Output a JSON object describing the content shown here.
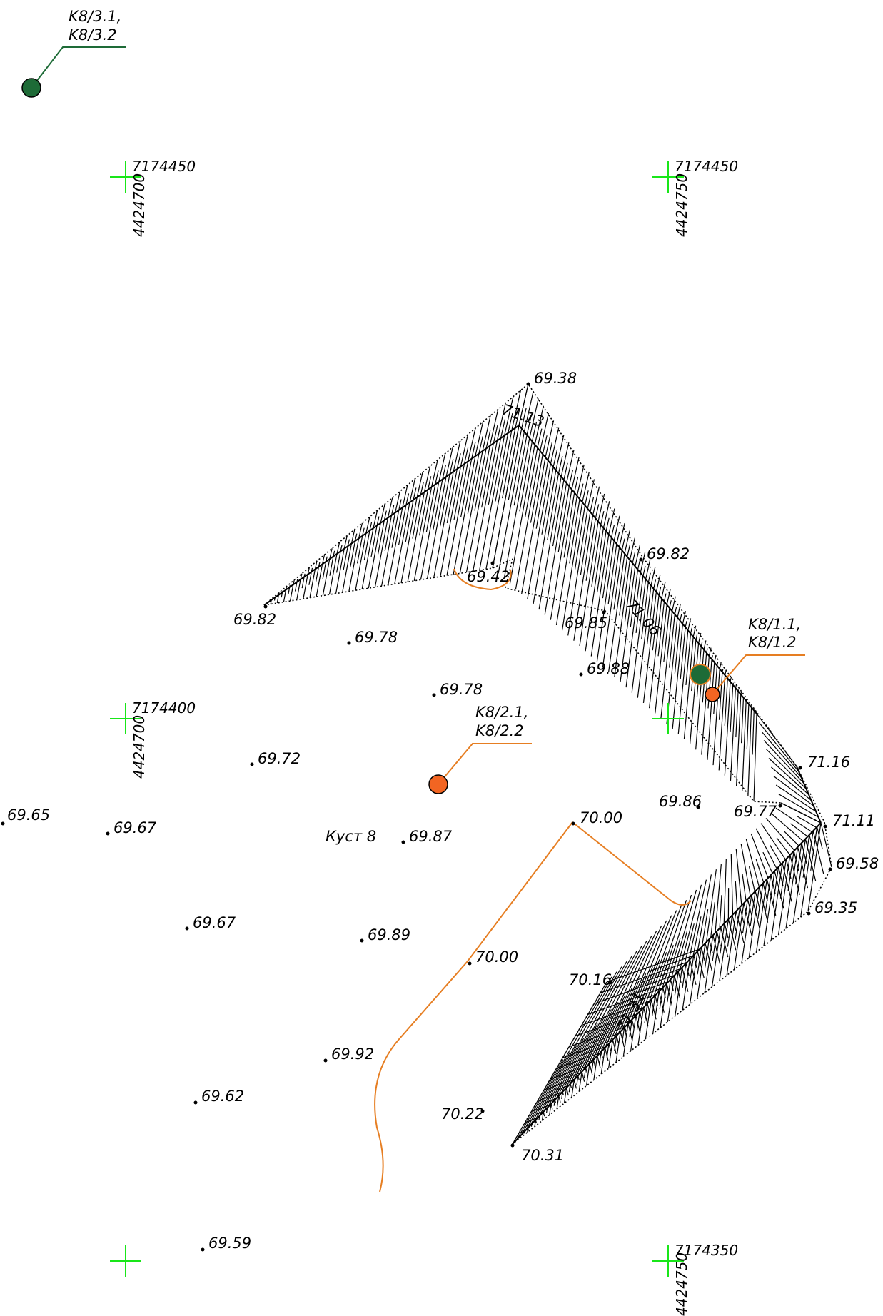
{
  "colors": {
    "grid_cross": "#19e619",
    "well_green": "#1e6b37",
    "well_orange": "#f26522",
    "contour": "#e67e22",
    "leader_green": "#1e6b37",
    "leader_orange": "#e67e22",
    "ink": "#000000"
  },
  "grid": {
    "tl_north": "7174450",
    "tl_east": "4424700",
    "tr_north": "7174450",
    "tr_east": "4424750",
    "ml_north": "7174400",
    "ml_east": "4424700",
    "br_north": "7174350",
    "br_east": "4424750"
  },
  "wells": {
    "k8_3": {
      "line1": "K8/3.1,",
      "line2": "K8/3.2",
      "color": "well-green"
    },
    "k8_2": {
      "line1": "K8/2.1,",
      "line2": "K8/2.2",
      "color": "well-orange"
    },
    "k8_1": {
      "line1": "K8/1.1,",
      "line2": "K8/1.2",
      "colors": [
        "well-green",
        "well-orange"
      ]
    }
  },
  "site_label": "Куст 8",
  "elevations": {
    "e01": "69.38",
    "e02": "71.13",
    "e03": "69.82",
    "e04": "69.42",
    "e05": "69.85",
    "e06": "71.06",
    "e07": "69.82",
    "e08": "69.78",
    "e09": "69.78",
    "e10": "69.88",
    "e11": "69.72",
    "e12": "71.16",
    "e13": "69.86",
    "e14": "69.77",
    "e15": "71.11",
    "e16": "69.65",
    "e17": "69.67",
    "e18": "69.87",
    "e19": "70.00",
    "e20": "69.58",
    "e21": "69.35",
    "e22": "69.67",
    "e23": "69.89",
    "e24": "70.00",
    "e25": "70.16",
    "e26": "71.31",
    "e27": "69.92",
    "e28": "69.62",
    "e29": "70.22",
    "e30": "70.31",
    "e31": "69.59"
  }
}
